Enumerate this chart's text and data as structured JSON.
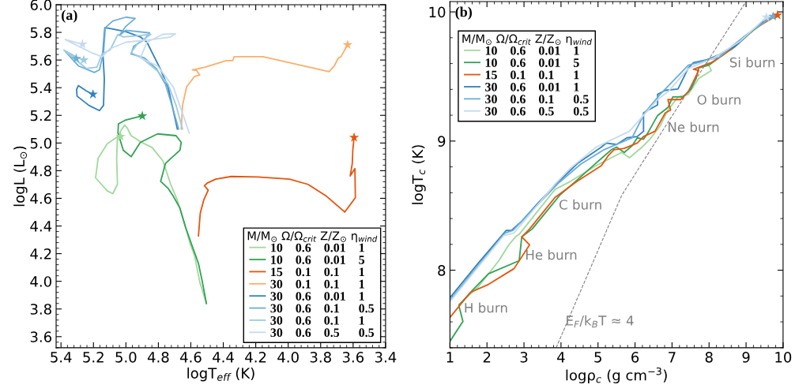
{
  "chart_data": [
    {
      "type": "line",
      "title": "(a)",
      "xlabel": "logT$_{eff}$ (K)",
      "ylabel": "logL (L$_{⊙}$)",
      "xlim": [
        5.43,
        3.4
      ],
      "ylim": [
        3.52,
        6.0
      ],
      "xticks": [
        5.4,
        5.2,
        {
          "value": 5.0,
          "label": "5.0"
        },
        4.8,
        4.6,
        4.4,
        4.2,
        {
          "value": 4.0,
          "label": "4.0"
        },
        3.8,
        3.6,
        3.4
      ],
      "yticks": [
        3.6,
        3.8,
        {
          "value": 4.0,
          "label": "4.0"
        },
        4.2,
        4.4,
        4.6,
        4.8,
        {
          "value": 5.0,
          "label": "5.0"
        },
        5.2,
        5.4,
        5.6,
        5.8,
        {
          "value": 6.0,
          "label": "6.0"
        }
      ],
      "legend": "bottom right",
      "legend_title": "M/M$_{⊙}$ Ω/Ω$_{crit}$ Z/Z$_{⊙}$ η$_{wind}$",
      "series": [
        {
          "name": "10 0.6 0.01 1",
          "color": "#a1d99b",
          "x": [
            4.504,
            4.545,
            4.577,
            4.602,
            4.643,
            4.683,
            4.724,
            4.773,
            4.838,
            4.903,
            4.968,
            4.992,
            5.008,
            5.025,
            5.052,
            5.057,
            5.052,
            5.081,
            5.114,
            5.187,
            5.171,
            5.114,
            5.052,
            5.033
          ],
          "values": [
            3.84,
            3.996,
            4.186,
            4.263,
            4.434,
            4.586,
            4.701,
            4.872,
            4.967,
            5.005,
            5.053,
            5.11,
            5.129,
            5.101,
            5.044,
            4.891,
            4.701,
            4.634,
            4.653,
            4.748,
            4.891,
            4.996,
            5.044,
            5.047
          ]
        },
        {
          "name": "10 0.6 0.01 5",
          "color": "#31a354",
          "x": [
            4.504,
            4.529,
            4.553,
            4.594,
            4.634,
            4.667,
            4.708,
            4.74,
            4.786,
            4.756,
            4.667,
            4.659,
            4.691,
            4.805,
            4.911,
            4.968,
            5.016,
            5.049,
            5.046,
            5.0,
            4.899
          ],
          "values": [
            3.84,
            3.996,
            4.129,
            4.263,
            4.396,
            4.529,
            4.615,
            4.672,
            4.723,
            4.853,
            4.948,
            5.005,
            5.053,
            5.066,
            5.005,
            4.901,
            4.948,
            5.072,
            5.139,
            5.167,
            5.196
          ]
        },
        {
          "name": "15 0.1 0.1 1",
          "color": "#e6550d",
          "x": [
            4.553,
            4.542,
            4.521,
            4.493,
            4.516,
            4.499,
            4.447,
            4.35,
            4.187,
            3.992,
            3.878,
            3.764,
            3.651,
            3.586,
            3.589,
            3.618,
            3.605,
            3.602,
            3.594
          ],
          "values": [
            4.329,
            4.491,
            4.586,
            4.659,
            4.691,
            4.71,
            4.739,
            4.758,
            4.754,
            4.739,
            4.701,
            4.615,
            4.501,
            4.605,
            4.815,
            4.762,
            4.853,
            4.948,
            5.04
          ]
        },
        {
          "name": "30 0.1 0.1 1",
          "color": "#fdae6b",
          "x": [
            4.659,
            4.651,
            4.626,
            4.577,
            4.545,
            4.564,
            4.59,
            4.512,
            4.382,
            4.342,
            4.333,
            4.155,
            3.748,
            3.716,
            3.691,
            3.675,
            3.634
          ],
          "values": [
            5.101,
            5.272,
            5.405,
            5.482,
            5.491,
            5.524,
            5.529,
            5.548,
            5.596,
            5.596,
            5.624,
            5.624,
            5.516,
            5.558,
            5.615,
            5.624,
            5.71
          ]
        },
        {
          "name": "30 0.6 0.01 1",
          "color": "#3182bd",
          "x": [
            4.683,
            4.708,
            4.74,
            4.789,
            4.838,
            4.87,
            4.911,
            5.0,
            5.098,
            5.13,
            5.142,
            5.133,
            5.138,
            5.163,
            5.228,
            5.301,
            5.304,
            5.293,
            5.244,
            5.203
          ],
          "values": [
            5.101,
            5.234,
            5.405,
            5.539,
            5.653,
            5.729,
            5.767,
            5.805,
            5.828,
            5.834,
            5.653,
            5.463,
            5.272,
            5.234,
            5.272,
            5.339,
            5.386,
            5.415,
            5.377,
            5.352
          ]
        },
        {
          "name": "30 0.6 0.1 0.5",
          "color": "#6baed6",
          "x": [
            4.675,
            4.716,
            4.756,
            4.813,
            4.886,
            4.968,
            4.951,
            4.886,
            4.854,
            5.0,
            5.041,
            5.0,
            4.943,
            5.0,
            5.081,
            5.127,
            5.138,
            5.163,
            5.195,
            5.293,
            5.374,
            5.325,
            5.306
          ],
          "values": [
            5.101,
            5.272,
            5.424,
            5.539,
            5.615,
            5.644,
            5.701,
            5.748,
            5.796,
            5.815,
            5.777,
            5.844,
            5.901,
            5.91,
            5.882,
            5.834,
            5.653,
            5.529,
            5.51,
            5.558,
            5.663,
            5.634,
            5.611
          ]
        },
        {
          "name": "30 0.6 0.1 1",
          "color": "#9ecae1",
          "x": [
            4.651,
            4.691,
            4.74,
            4.805,
            4.903,
            4.968,
            4.927,
            4.846,
            4.919,
            5.016,
            5.049,
            5.098,
            5.147,
            5.179,
            5.244,
            5.382,
            5.309,
            5.26
          ],
          "values": [
            5.101,
            5.272,
            5.424,
            5.52,
            5.615,
            5.653,
            5.72,
            5.786,
            5.777,
            5.767,
            5.786,
            5.672,
            5.644,
            5.548,
            5.539,
            5.672,
            5.624,
            5.6
          ]
        },
        {
          "name": "30 0.6 0.5 0.5",
          "color": "#c6dbef",
          "x": [
            4.61,
            4.651,
            4.708,
            4.805,
            4.911,
            4.87,
            4.773,
            4.694,
            4.724,
            4.838,
            5.0,
            5.098,
            5.147,
            5.212,
            5.374,
            5.268
          ],
          "values": [
            5.072,
            5.215,
            5.405,
            5.558,
            5.615,
            5.729,
            5.786,
            5.79,
            5.767,
            5.748,
            5.729,
            5.682,
            5.624,
            5.653,
            5.748,
            5.714
          ]
        },
        {
          "type": "scatter",
          "marker": "star",
          "x": [
            5.033,
            4.899,
            3.594,
            3.634,
            5.203,
            5.306,
            5.26,
            5.268
          ],
          "values": [
            5.047,
            5.196,
            5.04,
            5.71,
            5.352,
            5.611,
            5.6,
            5.714
          ],
          "colors": [
            "#a1d99b",
            "#31a354",
            "#e6550d",
            "#fdae6b",
            "#3182bd",
            "#6baed6",
            "#9ecae1",
            "#c6dbef"
          ]
        }
      ]
    },
    {
      "type": "line",
      "title": "(b)",
      "xlabel": "logρ$_{c}$ (g cm$^{−3}$)",
      "ylabel": "logT$_{c}$ (K)",
      "xlim": [
        1,
        10
      ],
      "ylim": [
        7.4,
        10.08
      ],
      "xticks": [
        1,
        2,
        3,
        4,
        5,
        6,
        7,
        8,
        9,
        10
      ],
      "yticks": [
        8,
        9,
        10
      ],
      "legend": "top left",
      "legend_title": "M/M$_{⊙}$ Ω/Ω$_{crit}$ Z/Z$_{⊙}$ η$_{wind}$",
      "annotations": [
        "H burn",
        "He burn",
        "C burn",
        "Ne burn",
        "O burn",
        "Si burn",
        "E$_{F}$/k$_{B}$T ≈ 4"
      ],
      "series": [
        {
          "name": "10 0.6 0.01 1",
          "color": "#a1d99b",
          "x": [
            1.24,
            1.76,
            2.32,
            2.59,
            2.77,
            2.87,
            3.84,
            4.25,
            4.95,
            5.64,
            5.85,
            6.19,
            6.4,
            6.68,
            6.89,
            7.16,
            7.44,
            7.72,
            8.06,
            7.93,
            8.13,
            8.62,
            9.1,
            9.66
          ],
          "values": [
            7.736,
            7.869,
            8.074,
            8.196,
            8.258,
            8.278,
            8.626,
            8.687,
            8.81,
            8.912,
            8.871,
            8.953,
            9.014,
            9.117,
            9.239,
            9.342,
            9.362,
            9.485,
            9.546,
            9.628,
            9.648,
            9.71,
            9.832,
            9.955
          ]
        },
        {
          "name": "10 0.6 0.01 5",
          "color": "#31a354",
          "x": [
            1.0,
            1.35,
            1.24,
            1.62,
            2.04,
            2.87,
            2.94,
            3.22,
            3.98,
            4.39,
            4.95,
            5.36,
            5.5,
            5.71,
            5.92,
            6.06,
            6.23,
            6.33,
            6.61,
            6.89,
            7.02,
            7.3,
            7.51,
            7.65,
            7.72,
            7.99,
            8.48,
            8.96,
            9.66
          ],
          "values": [
            7.45,
            7.604,
            7.726,
            7.849,
            7.972,
            8.074,
            8.258,
            8.319,
            8.585,
            8.687,
            8.83,
            8.933,
            8.953,
            8.912,
            8.963,
            9.025,
            9.014,
            9.055,
            9.198,
            9.26,
            9.342,
            9.342,
            9.403,
            9.485,
            9.566,
            9.587,
            9.689,
            9.812,
            9.955
          ]
        },
        {
          "name": "15 0.1 0.1 1",
          "color": "#e6550d",
          "x": [
            1.0,
            1.55,
            2.04,
            2.73,
            3.15,
            2.94,
            3.15,
            3.84,
            4.43,
            5.09,
            5.29,
            5.43,
            5.71,
            6.06,
            6.23,
            6.54,
            6.82,
            6.96,
            6.89,
            7.23,
            7.44,
            7.72,
            7.58,
            8.06,
            8.34,
            8.69,
            9.24,
            9.85
          ],
          "values": [
            7.634,
            7.828,
            7.89,
            8.012,
            8.196,
            8.258,
            8.319,
            8.564,
            8.687,
            8.81,
            8.892,
            8.933,
            8.943,
            8.984,
            9.035,
            9.076,
            9.219,
            9.239,
            9.321,
            9.321,
            9.382,
            9.546,
            9.556,
            9.607,
            9.658,
            9.73,
            9.873,
            9.975
          ]
        },
        {
          "name": "30 0.6 0.01 1",
          "color": "#3182bd",
          "x": [
            1.0,
            1.76,
            2.52,
            2.66,
            2.94,
            3.42,
            3.94,
            4.46,
            5.09,
            5.22,
            5.5,
            5.78,
            6.06,
            6.23,
            6.23,
            6.61,
            6.61,
            6.82,
            7.16,
            7.44,
            7.58,
            7.93,
            8.27,
            8.69,
            9.24,
            9.59
          ],
          "values": [
            7.787,
            8.053,
            8.308,
            8.308,
            8.38,
            8.533,
            8.687,
            8.83,
            8.953,
            8.984,
            8.973,
            9.025,
            9.035,
            9.076,
            9.219,
            9.28,
            9.362,
            9.393,
            9.403,
            9.566,
            9.607,
            9.628,
            9.669,
            9.73,
            9.873,
            9.959
          ]
        },
        {
          "name": "30 0.6 0.1 0.5",
          "color": "#6baed6",
          "x": [
            1.0,
            2.49,
            2.7,
            3.94,
            4.53,
            5.16,
            5.92,
            6.26,
            6.68,
            7.44,
            7.93,
            8.27,
            8.69,
            9.24,
            9.73
          ],
          "values": [
            7.767,
            8.288,
            8.308,
            8.677,
            8.82,
            8.933,
            9.025,
            9.219,
            9.362,
            9.587,
            9.624,
            9.648,
            9.751,
            9.873,
            9.965
          ]
        },
        {
          "name": "30 0.6 0.5 0.5",
          "color": "#c6dbef",
          "x": [
            1.0,
            2.45,
            2.73,
            3.84,
            4.25,
            4.95,
            5.85,
            6.26,
            6.61,
            6.89,
            7.44,
            8.13,
            8.83,
            9.55
          ],
          "values": [
            7.757,
            8.268,
            8.288,
            8.667,
            8.789,
            8.953,
            9.076,
            9.209,
            9.321,
            9.382,
            9.562,
            9.644,
            9.771,
            9.959
          ]
        },
        {
          "line_style": "dashed",
          "color": "#808080",
          "x": [
            3.87,
            5.64,
            6.9,
            9.0
          ],
          "values": [
            7.4,
            8.58,
            9.15,
            10.08
          ]
        },
        {
          "type": "scatter",
          "marker": "star",
          "x": [
            9.55,
            9.73,
            9.85
          ],
          "values": [
            9.959,
            9.965,
            9.975
          ],
          "colors": [
            "#c6dbef",
            "#6baed6",
            "#e6550d"
          ]
        }
      ]
    }
  ]
}
